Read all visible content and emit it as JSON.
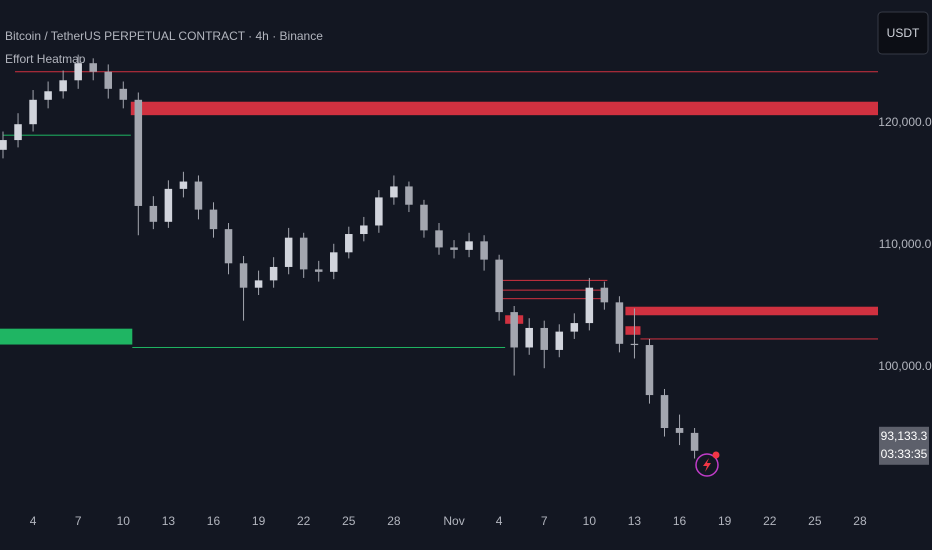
{
  "chart_data": {
    "type": "candlestick",
    "title": "Bitcoin / TetherUS PERPETUAL CONTRACT · 4h · Binance",
    "indicator": "Effort Heatmap",
    "currency": "USDT",
    "candle_color": "#a3a6af",
    "grid": false,
    "xlim": [
      0.8,
      59.2
    ],
    "ylim": [
      88280,
      130080
    ],
    "yticks": [
      {
        "value": 120000,
        "label": "120,000.0"
      },
      {
        "value": 110000,
        "label": "110,000.0"
      },
      {
        "value": 100000,
        "label": "100,000.0"
      }
    ],
    "xticks": [
      {
        "value": 3,
        "label": "4"
      },
      {
        "value": 6,
        "label": "7"
      },
      {
        "value": 9,
        "label": "10"
      },
      {
        "value": 12,
        "label": "13"
      },
      {
        "value": 15,
        "label": "16"
      },
      {
        "value": 18,
        "label": "19"
      },
      {
        "value": 21,
        "label": "22"
      },
      {
        "value": 24,
        "label": "25"
      },
      {
        "value": 27,
        "label": "28"
      },
      {
        "value": 31,
        "label": "Nov"
      },
      {
        "value": 34,
        "label": "4"
      },
      {
        "value": 37,
        "label": "7"
      },
      {
        "value": 40,
        "label": "10"
      },
      {
        "value": 43,
        "label": "13"
      },
      {
        "value": 46,
        "label": "16"
      },
      {
        "value": 49,
        "label": "19"
      },
      {
        "value": 52,
        "label": "22"
      },
      {
        "value": 55,
        "label": "25"
      },
      {
        "value": 58,
        "label": "28"
      }
    ],
    "x": [
      1,
      2,
      3,
      4,
      5,
      6,
      7,
      8,
      9,
      10,
      11,
      12,
      13,
      14,
      15,
      16,
      17,
      18,
      19,
      20,
      21,
      22,
      23,
      24,
      25,
      26,
      27,
      28,
      29,
      30,
      31,
      32,
      33,
      34,
      35,
      36,
      37,
      38,
      39,
      40,
      41,
      42,
      43,
      44,
      45,
      46,
      47
    ],
    "open": [
      117800,
      118600,
      119900,
      121900,
      122600,
      123500,
      124900,
      124200,
      122800,
      121900,
      113200,
      111900,
      114600,
      115200,
      112900,
      111300,
      108500,
      106500,
      107100,
      108200,
      110600,
      108000,
      107800,
      109400,
      110900,
      111600,
      113900,
      114800,
      113300,
      111200,
      109800,
      109600,
      110300,
      108800,
      104500,
      101600,
      103200,
      101400,
      102900,
      103600,
      106500,
      105300,
      101900,
      101800,
      97700,
      95000,
      94600
    ],
    "high": [
      119300,
      120800,
      122700,
      123400,
      124300,
      125600,
      125300,
      124800,
      123400,
      122500,
      114000,
      115300,
      116000,
      115700,
      113500,
      111800,
      109100,
      107900,
      109000,
      111400,
      111000,
      108700,
      110100,
      111500,
      112300,
      114500,
      115700,
      115200,
      113700,
      111800,
      110400,
      111000,
      110800,
      109200,
      105000,
      104000,
      103800,
      103500,
      104400,
      107300,
      107000,
      105800,
      104800,
      102300,
      98200,
      96100,
      95000
    ],
    "low": [
      117100,
      118000,
      119300,
      121200,
      122000,
      122800,
      123500,
      122000,
      121200,
      110800,
      111300,
      111400,
      113900,
      112100,
      110600,
      107600,
      103800,
      105900,
      106500,
      107600,
      107300,
      107000,
      107200,
      108900,
      110300,
      111000,
      113300,
      112700,
      110600,
      109200,
      108900,
      109000,
      107900,
      103800,
      99300,
      101000,
      99900,
      100800,
      102300,
      103000,
      104700,
      101200,
      100700,
      97000,
      94300,
      93600,
      92500
    ],
    "close": [
      118600,
      119900,
      121900,
      122600,
      123500,
      124900,
      124200,
      122800,
      121900,
      113200,
      111900,
      114600,
      115200,
      112900,
      111300,
      108500,
      106500,
      107100,
      108200,
      110600,
      108000,
      107800,
      109400,
      110900,
      111600,
      113900,
      114800,
      113300,
      111200,
      109800,
      109600,
      110300,
      108800,
      104500,
      101600,
      103200,
      101400,
      102900,
      103600,
      106500,
      105300,
      101900,
      101800,
      97700,
      95000,
      94600,
      93133.3
    ],
    "last_price": {
      "value": 93133.3,
      "label": "93,133.3"
    },
    "countdown": "03:33:35",
    "zones": [
      {
        "from": 1.8,
        "to": 59.2,
        "low": 124200,
        "high": 124200,
        "color": "#f23645"
      },
      {
        "from": 9.5,
        "to": 59.2,
        "low": 120600,
        "high": 121700,
        "color": "#f23645"
      },
      {
        "from": 1.0,
        "to": 9.5,
        "low": 119000,
        "high": 119000,
        "color": "#22d16f"
      },
      {
        "from": 0.8,
        "to": 9.6,
        "low": 101800,
        "high": 103100,
        "color": "#22d16f"
      },
      {
        "from": 9.6,
        "to": 34.4,
        "low": 101600,
        "high": 101600,
        "color": "#22d16f"
      },
      {
        "from": 34.2,
        "to": 41.2,
        "low": 107100,
        "high": 107100,
        "color": "#f23645"
      },
      {
        "from": 34.2,
        "to": 41.2,
        "low": 106300,
        "high": 106300,
        "color": "#f23645"
      },
      {
        "from": 34.2,
        "to": 41.2,
        "low": 105600,
        "high": 105600,
        "color": "#f23645"
      },
      {
        "from": 34.4,
        "to": 35.6,
        "low": 103500,
        "high": 104200,
        "color": "#f23645"
      },
      {
        "from": 42.4,
        "to": 59.2,
        "low": 104200,
        "high": 104900,
        "color": "#f23645"
      },
      {
        "from": 43.4,
        "to": 59.2,
        "low": 102300,
        "high": 102300,
        "color": "#f23645"
      },
      {
        "from": 42.4,
        "to": 43.4,
        "low": 102600,
        "high": 103300,
        "color": "#f23645"
      }
    ]
  }
}
